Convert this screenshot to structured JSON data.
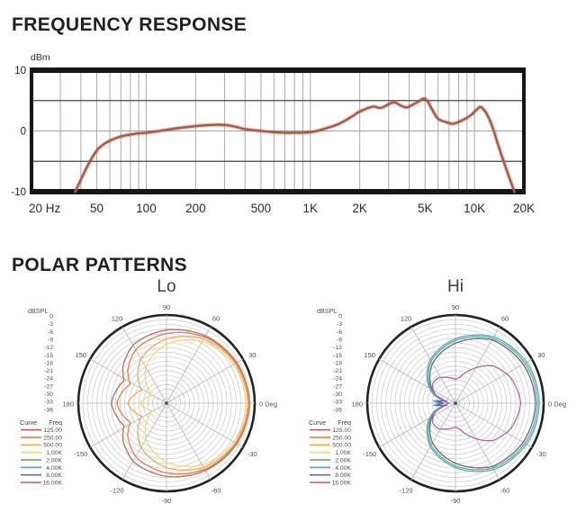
{
  "sections": {
    "frequency_response_title": "FREQUENCY RESPONSE",
    "polar_patterns_title": "POLAR PATTERNS"
  },
  "polar_legend": {
    "curve_header": "Curve",
    "freq_header": "Freq",
    "entries": [
      {
        "freq": "125.00",
        "color": "#ab7260"
      },
      {
        "freq": "250.00",
        "color": "#df7f4e"
      },
      {
        "freq": "500.00",
        "color": "#f2a85e"
      },
      {
        "freq": "1.00K",
        "color": "#f3d67c"
      },
      {
        "freq": "2.00K",
        "color": "#67b46d"
      },
      {
        "freq": "4.00K",
        "color": "#5ba3d2"
      },
      {
        "freq": "8.00K",
        "color": "#67659a"
      },
      {
        "freq": "16.00K",
        "color": "#b5679c"
      }
    ]
  },
  "chart_data": [
    {
      "type": "line",
      "title": "Frequency Response",
      "ylabel": "dBm",
      "x_scale": "log",
      "xlim_hz": [
        20,
        20000
      ],
      "ylim_db": [
        -10,
        10
      ],
      "y_tick_labels": [
        "10",
        "0",
        "-10"
      ],
      "y_tick_values": [
        10,
        0,
        -10
      ],
      "h_dark_gridlines_db": [
        5,
        -5
      ],
      "h_mid_gridline_db": 0,
      "x_tick_labels": [
        "20 Hz",
        "50",
        "100",
        "200",
        "500",
        "1K",
        "2K",
        "5K",
        "10K",
        "20K"
      ],
      "x_tick_values_hz": [
        20,
        50,
        100,
        200,
        500,
        1000,
        2000,
        5000,
        10000,
        20000
      ],
      "grid": true,
      "series": [
        {
          "name": "response",
          "color": "#a85843",
          "points_hz_db": [
            [
              37,
              -10
            ],
            [
              40,
              -8
            ],
            [
              45,
              -5.2
            ],
            [
              50,
              -3.2
            ],
            [
              55,
              -2.2
            ],
            [
              60,
              -1.6
            ],
            [
              70,
              -0.9
            ],
            [
              80,
              -0.6
            ],
            [
              90,
              -0.4
            ],
            [
              100,
              -0.3
            ],
            [
              120,
              0
            ],
            [
              150,
              0.4
            ],
            [
              200,
              0.8
            ],
            [
              250,
              1.0
            ],
            [
              300,
              1.0
            ],
            [
              350,
              0.7
            ],
            [
              400,
              0.3
            ],
            [
              500,
              0
            ],
            [
              600,
              -0.2
            ],
            [
              700,
              -0.3
            ],
            [
              800,
              -0.3
            ],
            [
              1000,
              -0.2
            ],
            [
              1200,
              0.3
            ],
            [
              1500,
              1.2
            ],
            [
              1800,
              2.4
            ],
            [
              2000,
              3.2
            ],
            [
              2400,
              4.0
            ],
            [
              2700,
              3.8
            ],
            [
              3200,
              4.7
            ],
            [
              3600,
              4.1
            ],
            [
              3900,
              3.9
            ],
            [
              4400,
              4.6
            ],
            [
              5000,
              5.3
            ],
            [
              5500,
              3.6
            ],
            [
              6000,
              2.0
            ],
            [
              7000,
              1.3
            ],
            [
              7500,
              1.2
            ],
            [
              8500,
              1.8
            ],
            [
              9500,
              2.6
            ],
            [
              10500,
              3.7
            ],
            [
              11000,
              3.9
            ],
            [
              12000,
              2.6
            ],
            [
              13000,
              0.3
            ],
            [
              14000,
              -2.5
            ],
            [
              15500,
              -6.0
            ],
            [
              17500,
              -10
            ]
          ]
        }
      ]
    },
    {
      "type": "polar",
      "title": "Lo",
      "r_axis_label": "dBSPL",
      "r_tick_labels": [
        "0",
        "-3",
        "-6",
        "-9",
        "-12",
        "-15",
        "-18",
        "-21",
        "-24",
        "-27",
        "-30",
        "-33",
        "-36"
      ],
      "angle_labels": [
        {
          "deg": 90,
          "label": "90"
        },
        {
          "deg": 60,
          "label": "60"
        },
        {
          "deg": 30,
          "label": "30"
        },
        {
          "deg": 0,
          "label": "0 Deg"
        },
        {
          "deg": -30,
          "label": "-30"
        },
        {
          "deg": -60,
          "label": "-60"
        },
        {
          "deg": -90,
          "label": "-90"
        },
        {
          "deg": -120,
          "label": "-120"
        },
        {
          "deg": -150,
          "label": "-150"
        },
        {
          "deg": 180,
          "label": "180"
        },
        {
          "deg": 150,
          "label": "150"
        },
        {
          "deg": 120,
          "label": "120"
        }
      ],
      "series": [
        {
          "name": "125.00",
          "color": "#ab7260",
          "points_deg_r": [
            [
              0,
              0.94
            ],
            [
              30,
              0.92
            ],
            [
              60,
              0.88
            ],
            [
              90,
              0.83
            ],
            [
              120,
              0.76
            ],
            [
              140,
              0.645
            ],
            [
              152,
              0.545
            ],
            [
              165,
              0.585
            ],
            [
              175,
              0.615
            ],
            [
              180,
              0.625
            ]
          ]
        },
        {
          "name": "250.00",
          "color": "#df7f4e",
          "points_deg_r": [
            [
              0,
              0.935
            ],
            [
              30,
              0.91
            ],
            [
              60,
              0.865
            ],
            [
              90,
              0.79
            ],
            [
              120,
              0.7
            ],
            [
              140,
              0.575
            ],
            [
              152,
              0.465
            ],
            [
              165,
              0.515
            ],
            [
              175,
              0.55
            ],
            [
              180,
              0.56
            ]
          ]
        },
        {
          "name": "500.00",
          "color": "#f2a85e",
          "points_deg_r": [
            [
              0,
              0.92
            ],
            [
              30,
              0.9
            ],
            [
              60,
              0.84
            ],
            [
              90,
              0.73
            ],
            [
              120,
              0.58
            ],
            [
              140,
              0.42
            ],
            [
              152,
              0.32
            ],
            [
              165,
              0.375
            ],
            [
              175,
              0.425
            ],
            [
              180,
              0.44
            ]
          ]
        },
        {
          "name": "1.00K",
          "color": "#f3d67c",
          "points_deg_r": [
            [
              0,
              0.9
            ],
            [
              30,
              0.88
            ],
            [
              60,
              0.81
            ],
            [
              90,
              0.67
            ],
            [
              120,
              0.47
            ],
            [
              140,
              0.28
            ],
            [
              152,
              0.19
            ],
            [
              165,
              0.235
            ],
            [
              175,
              0.28
            ],
            [
              180,
              0.295
            ]
          ]
        }
      ]
    },
    {
      "type": "polar",
      "title": "Hi",
      "r_axis_label": "dBSPL",
      "r_tick_labels": [
        "0",
        "-3",
        "-6",
        "-9",
        "-12",
        "-15",
        "-18",
        "-21",
        "-24",
        "-27",
        "-30",
        "-33",
        "-36"
      ],
      "angle_labels": [
        {
          "deg": 90,
          "label": "90"
        },
        {
          "deg": 60,
          "label": "60"
        },
        {
          "deg": 30,
          "label": "30"
        },
        {
          "deg": 0,
          "label": "0 Deg"
        },
        {
          "deg": -30,
          "label": "-30"
        },
        {
          "deg": -60,
          "label": "-60"
        },
        {
          "deg": -90,
          "label": "-90"
        },
        {
          "deg": -120,
          "label": "-120"
        },
        {
          "deg": -150,
          "label": "-150"
        },
        {
          "deg": 180,
          "label": "180"
        },
        {
          "deg": 150,
          "label": "150"
        },
        {
          "deg": 120,
          "label": "120"
        }
      ],
      "series": [
        {
          "name": "2.00K",
          "color": "#67b46d",
          "points_deg_r": [
            [
              0,
              0.93
            ],
            [
              30,
              0.91
            ],
            [
              60,
              0.85
            ],
            [
              90,
              0.71
            ],
            [
              120,
              0.55
            ],
            [
              145,
              0.36
            ],
            [
              158,
              0.25
            ],
            [
              168,
              0.12
            ],
            [
              174,
              0.23
            ],
            [
              180,
              0.15
            ]
          ]
        },
        {
          "name": "4.00K",
          "color": "#5ba3d2",
          "points_deg_r": [
            [
              0,
              0.95
            ],
            [
              30,
              0.93
            ],
            [
              60,
              0.87
            ],
            [
              90,
              0.73
            ],
            [
              120,
              0.57
            ],
            [
              145,
              0.38
            ],
            [
              158,
              0.27
            ],
            [
              168,
              0.13
            ],
            [
              174,
              0.25
            ],
            [
              180,
              0.17
            ]
          ]
        },
        {
          "name": "8.00K",
          "color": "#67659a",
          "points_deg_r": [
            [
              0,
              0.91
            ],
            [
              30,
              0.885
            ],
            [
              60,
              0.83
            ],
            [
              90,
              0.68
            ],
            [
              120,
              0.52
            ],
            [
              145,
              0.34
            ],
            [
              158,
              0.23
            ],
            [
              168,
              0.1
            ],
            [
              174,
              0.21
            ],
            [
              180,
              0.13
            ]
          ]
        },
        {
          "name": "16.00K",
          "color": "#b5679c",
          "points_deg_r": [
            [
              0,
              0.74
            ],
            [
              25,
              0.69
            ],
            [
              45,
              0.6
            ],
            [
              65,
              0.42
            ],
            [
              80,
              0.3
            ],
            [
              90,
              0.27
            ],
            [
              105,
              0.3
            ],
            [
              125,
              0.35
            ],
            [
              140,
              0.34
            ],
            [
              155,
              0.26
            ],
            [
              168,
              0.14
            ],
            [
              175,
              0.09
            ],
            [
              180,
              0.07
            ]
          ]
        }
      ]
    }
  ]
}
